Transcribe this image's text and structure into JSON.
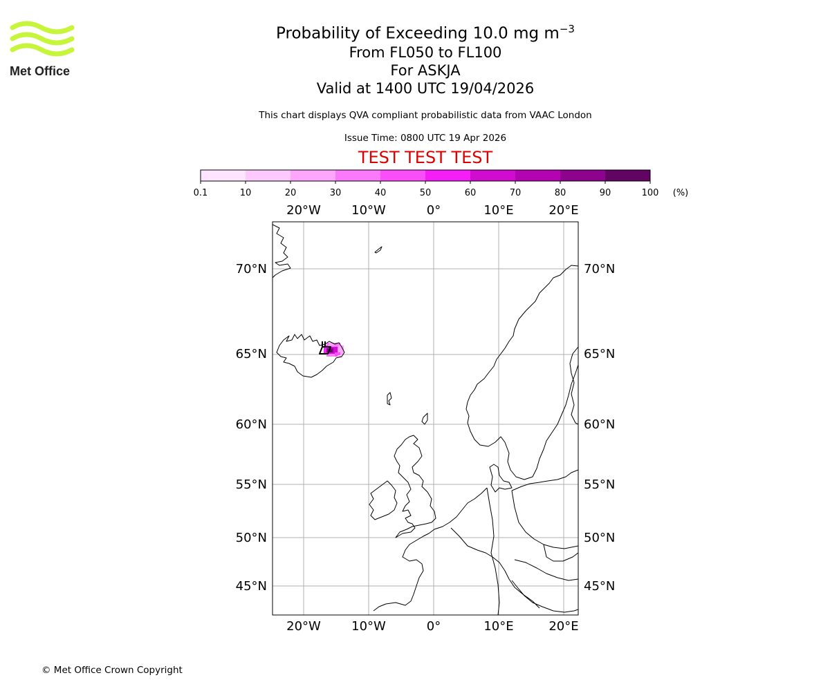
{
  "header": {
    "logo_text": "Met Office",
    "title_prefix": "Probability of Exceeding 10.0 mg m",
    "title_exponent": "−3",
    "level_range": "From FL050 to FL100",
    "volcano": "For ASKJA",
    "valid_time": "Valid at 1400 UTC 19/04/2026",
    "description": "This chart displays QVA compliant probabilistic data from VAAC London",
    "issue_time": "Issue Time: 0800 UTC 19 Apr 2026",
    "test_banner": "TEST TEST TEST"
  },
  "colorbar": {
    "ticks": [
      "0.1",
      "10",
      "20",
      "30",
      "40",
      "50",
      "60",
      "70",
      "80",
      "90",
      "100"
    ],
    "unit_label": "(%)",
    "colors": [
      "#ffe5ff",
      "#fecafe",
      "#fca6fc",
      "#fb7afb",
      "#fb4efb",
      "#f61ef6",
      "#cf0ccf",
      "#b303b3",
      "#8d038d",
      "#620562"
    ]
  },
  "map": {
    "lon_labels": [
      "20°W",
      "10°W",
      "0°",
      "10°E",
      "20°E"
    ],
    "lat_labels": [
      "70°N",
      "65°N",
      "60°N",
      "55°N",
      "50°N",
      "45°N"
    ],
    "colors": {
      "grid": "#b0b0b0",
      "coast": "#000000",
      "frame": "#000000",
      "logo": "#c7f53b"
    }
  },
  "footer": {
    "copyright": "© Met Office Crown Copyright"
  }
}
